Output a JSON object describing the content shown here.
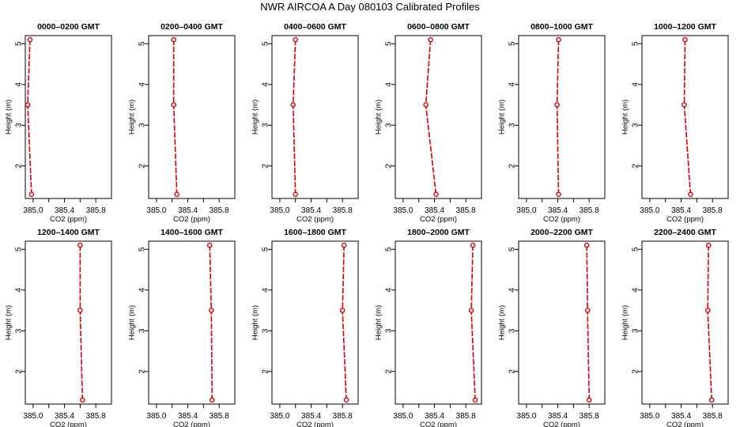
{
  "title": "NWR AIRCOA A  Day 080103  Calibrated Profiles",
  "chart_data": [
    {
      "type": "line",
      "title": "0000–0200 GMT",
      "xlabel": "CO2 (ppm)",
      "ylabel": "Height (m)",
      "xlim": [
        384.9,
        386.0
      ],
      "ylim": [
        1.2,
        5.2
      ],
      "xticks": [
        "385.0",
        "385.4",
        "385.8"
      ],
      "yticks": [
        "2",
        "3",
        "4",
        "5"
      ],
      "series": [
        {
          "x": [
            384.96,
            384.93,
            384.98
          ],
          "y": [
            5.1,
            3.5,
            1.3
          ]
        }
      ]
    },
    {
      "type": "line",
      "title": "0200–0400 GMT",
      "xlabel": "CO2 (ppm)",
      "ylabel": "Height (m)",
      "xlim": [
        384.9,
        386.0
      ],
      "ylim": [
        1.2,
        5.2
      ],
      "xticks": [
        "385.0",
        "385.4",
        "385.8"
      ],
      "yticks": [
        "2",
        "3",
        "4",
        "5"
      ],
      "series": [
        {
          "x": [
            385.22,
            385.22,
            385.26
          ],
          "y": [
            5.1,
            3.5,
            1.3
          ]
        }
      ]
    },
    {
      "type": "line",
      "title": "0400–0600 GMT",
      "xlabel": "CO2 (ppm)",
      "ylabel": "Height (m)",
      "xlim": [
        384.9,
        386.0
      ],
      "ylim": [
        1.2,
        5.2
      ],
      "xticks": [
        "385.0",
        "385.4",
        "385.8"
      ],
      "yticks": [
        "2",
        "3",
        "4",
        "5"
      ],
      "series": [
        {
          "x": [
            385.2,
            385.17,
            385.2
          ],
          "y": [
            5.1,
            3.5,
            1.3
          ]
        }
      ]
    },
    {
      "type": "line",
      "title": "0600–0800 GMT",
      "xlabel": "CO2 (ppm)",
      "ylabel": "Height (m)",
      "xlim": [
        384.9,
        386.0
      ],
      "ylim": [
        1.2,
        5.2
      ],
      "xticks": [
        "385.0",
        "385.4",
        "385.8"
      ],
      "yticks": [
        "2",
        "3",
        "4",
        "5"
      ],
      "series": [
        {
          "x": [
            385.35,
            385.29,
            385.42
          ],
          "y": [
            5.1,
            3.5,
            1.3
          ]
        }
      ]
    },
    {
      "type": "line",
      "title": "0800–1000 GMT",
      "xlabel": "CO2 (ppm)",
      "ylabel": "Height (m)",
      "xlim": [
        384.9,
        386.0
      ],
      "ylim": [
        1.2,
        5.2
      ],
      "xticks": [
        "385.0",
        "385.4",
        "385.8"
      ],
      "yticks": [
        "2",
        "3",
        "4",
        "5"
      ],
      "series": [
        {
          "x": [
            385.41,
            385.39,
            385.41
          ],
          "y": [
            5.1,
            3.5,
            1.3
          ]
        }
      ]
    },
    {
      "type": "line",
      "title": "1000–1200 GMT",
      "xlabel": "CO2 (ppm)",
      "ylabel": "Height (m)",
      "xlim": [
        384.9,
        386.0
      ],
      "ylim": [
        1.2,
        5.2
      ],
      "xticks": [
        "385.0",
        "385.4",
        "385.8"
      ],
      "yticks": [
        "2",
        "3",
        "4",
        "5"
      ],
      "series": [
        {
          "x": [
            385.45,
            385.44,
            385.52
          ],
          "y": [
            5.1,
            3.5,
            1.3
          ]
        }
      ]
    },
    {
      "type": "line",
      "title": "1200–1400 GMT",
      "xlabel": "CO2 (ppm)",
      "ylabel": "Height (m)",
      "xlim": [
        384.9,
        386.0
      ],
      "ylim": [
        1.2,
        5.2
      ],
      "xticks": [
        "385.0",
        "385.4",
        "385.8"
      ],
      "yticks": [
        "2",
        "3",
        "4",
        "5"
      ],
      "series": [
        {
          "x": [
            385.6,
            385.6,
            385.63
          ],
          "y": [
            5.1,
            3.5,
            1.3
          ]
        }
      ]
    },
    {
      "type": "line",
      "title": "1400–1600 GMT",
      "xlabel": "CO2 (ppm)",
      "ylabel": "Height (m)",
      "xlim": [
        384.9,
        386.0
      ],
      "ylim": [
        1.2,
        5.2
      ],
      "xticks": [
        "385.0",
        "385.4",
        "385.8"
      ],
      "yticks": [
        "2",
        "3",
        "4",
        "5"
      ],
      "series": [
        {
          "x": [
            385.68,
            385.7,
            385.71
          ],
          "y": [
            5.1,
            3.5,
            1.3
          ]
        }
      ]
    },
    {
      "type": "line",
      "title": "1600–1800 GMT",
      "xlabel": "CO2 (ppm)",
      "ylabel": "Height (m)",
      "xlim": [
        384.9,
        386.0
      ],
      "ylim": [
        1.2,
        5.2
      ],
      "xticks": [
        "385.0",
        "385.4",
        "385.8"
      ],
      "yticks": [
        "2",
        "3",
        "4",
        "5"
      ],
      "series": [
        {
          "x": [
            385.82,
            385.8,
            385.85
          ],
          "y": [
            5.1,
            3.5,
            1.3
          ]
        }
      ]
    },
    {
      "type": "line",
      "title": "1800–2000 GMT",
      "xlabel": "CO2 (ppm)",
      "ylabel": "Height (m)",
      "xlim": [
        384.9,
        386.0
      ],
      "ylim": [
        1.2,
        5.2
      ],
      "xticks": [
        "385.0",
        "385.4",
        "385.8"
      ],
      "yticks": [
        "2",
        "3",
        "4",
        "5"
      ],
      "series": [
        {
          "x": [
            385.89,
            385.87,
            385.92
          ],
          "y": [
            5.1,
            3.5,
            1.3
          ]
        }
      ]
    },
    {
      "type": "line",
      "title": "2000–2200 GMT",
      "xlabel": "CO2 (ppm)",
      "ylabel": "Height (m)",
      "xlim": [
        384.9,
        386.0
      ],
      "ylim": [
        1.2,
        5.2
      ],
      "xticks": [
        "385.0",
        "385.4",
        "385.8"
      ],
      "yticks": [
        "2",
        "3",
        "4",
        "5"
      ],
      "series": [
        {
          "x": [
            385.77,
            385.78,
            385.8
          ],
          "y": [
            5.1,
            3.5,
            1.3
          ]
        }
      ]
    },
    {
      "type": "line",
      "title": "2200–2400 GMT",
      "xlabel": "CO2 (ppm)",
      "ylabel": "Height (m)",
      "xlim": [
        384.9,
        386.0
      ],
      "ylim": [
        1.2,
        5.2
      ],
      "xticks": [
        "385.0",
        "385.4",
        "385.8"
      ],
      "yticks": [
        "2",
        "3",
        "4",
        "5"
      ],
      "series": [
        {
          "x": [
            385.75,
            385.74,
            385.79
          ],
          "y": [
            5.1,
            3.5,
            1.3
          ]
        }
      ]
    }
  ],
  "colors": {
    "line": "#dd0000",
    "marker": "#dd0000",
    "axis": "#000000"
  }
}
